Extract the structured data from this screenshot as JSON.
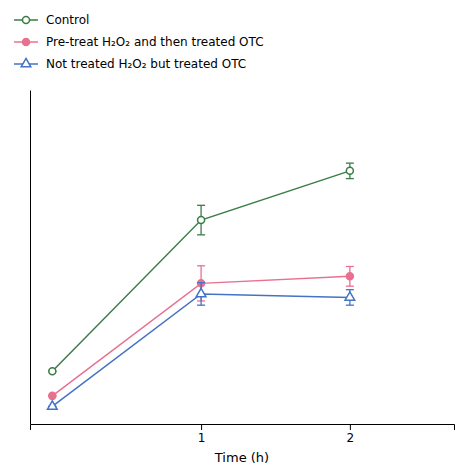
{
  "chart_data": {
    "type": "line",
    "title": "",
    "xlabel": "Time (h)",
    "x": [
      0,
      1,
      2
    ],
    "series": [
      {
        "name": "Control",
        "color": "#3a7d44",
        "marker": "open-circle",
        "values": [
          1.5,
          5.8,
          7.2
        ],
        "errors": [
          0.0,
          0.42,
          0.22
        ]
      },
      {
        "name": "Pre-treat H₂O₂ and then treated OTC",
        "color": "#e87090",
        "marker": "circle",
        "values": [
          0.8,
          4.0,
          4.2
        ],
        "errors": [
          0.0,
          0.5,
          0.28
        ]
      },
      {
        "name": "Not treated H₂O₂ but treated OTC",
        "color": "#4472c4",
        "marker": "open-triangle",
        "values": [
          0.5,
          3.7,
          3.6
        ],
        "errors": [
          0.0,
          0.32,
          0.22
        ]
      }
    ],
    "xlim": [
      -0.15,
      2.7
    ],
    "xticks": [
      1,
      2
    ],
    "ylim": [
      0,
      9.5
    ],
    "tick_labels": "x",
    "legend": "top-left"
  }
}
